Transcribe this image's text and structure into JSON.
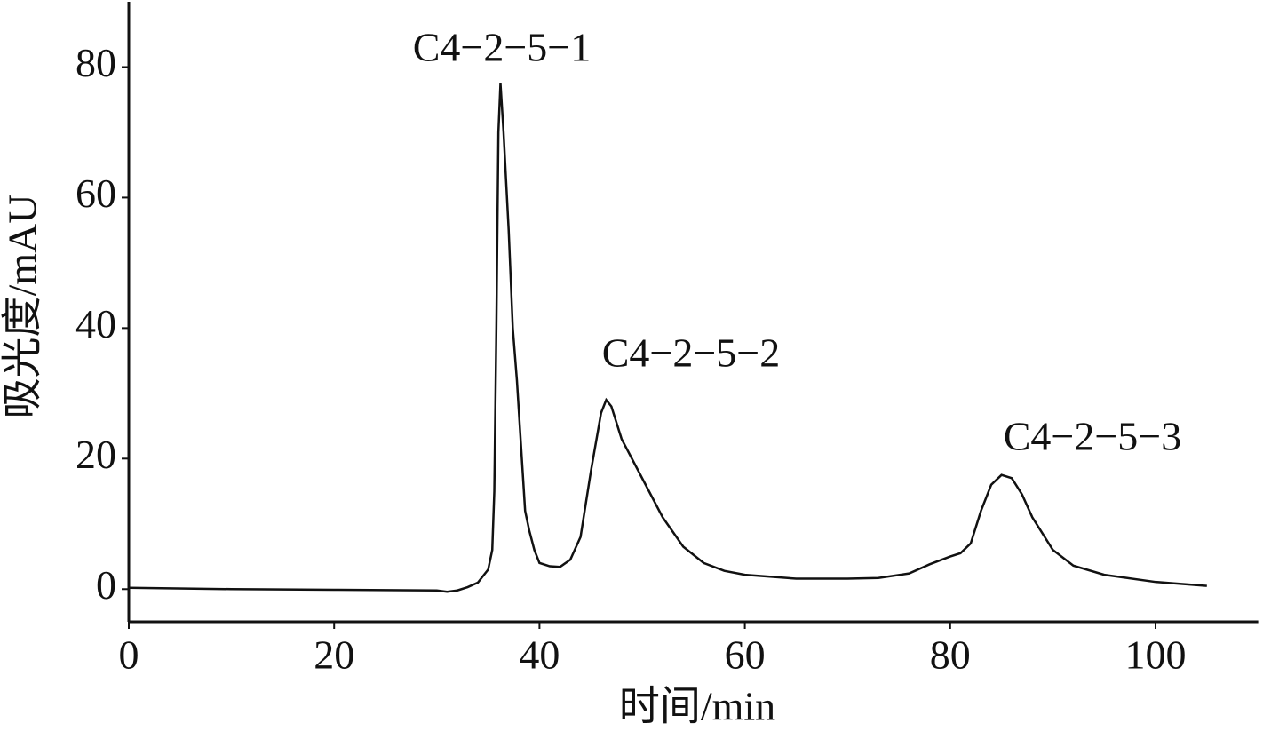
{
  "chart_data": {
    "type": "line",
    "xlabel": "时间/min",
    "ylabel": "吸光度/mAU",
    "annotations": [
      "C4−2−5−1",
      "C4−2−5−2",
      "C4−2−5−3"
    ],
    "x": [
      0,
      10,
      20,
      30,
      31,
      32,
      33,
      34,
      35,
      35.4,
      35.6,
      35.8,
      36.0,
      36.2,
      36.5,
      37,
      37.4,
      37.8,
      38.2,
      38.6,
      39,
      39.5,
      40,
      41,
      42,
      43,
      44,
      45,
      46,
      46.5,
      47,
      48,
      50,
      52,
      54,
      56,
      58,
      60,
      65,
      70,
      73,
      76,
      78,
      80,
      81,
      82,
      83,
      84,
      85,
      86,
      87,
      88,
      90,
      92,
      95,
      100,
      105
    ],
    "series": [
      {
        "color": "#111111",
        "values": [
          0.2,
          0.0,
          -0.1,
          -0.2,
          -0.4,
          -0.2,
          0.3,
          1,
          3,
          6,
          15,
          40,
          70,
          77.5,
          70,
          55,
          40,
          32,
          22,
          12,
          9,
          6,
          4,
          3.5,
          3.4,
          4.5,
          8,
          18,
          27,
          29,
          28,
          23,
          17,
          11,
          6.5,
          4,
          2.8,
          2.2,
          1.6,
          1.6,
          1.7,
          2.4,
          3.8,
          5,
          5.5,
          7,
          12,
          16,
          17.5,
          17,
          14.5,
          11,
          6,
          3.6,
          2.2,
          1.1,
          0.5
        ]
      }
    ],
    "xlim": [
      0,
      110
    ],
    "ylim": [
      -5,
      90
    ],
    "xticks": [
      0,
      20,
      40,
      60,
      80,
      100
    ],
    "yticks": [
      0,
      20,
      40,
      60,
      80
    ]
  }
}
